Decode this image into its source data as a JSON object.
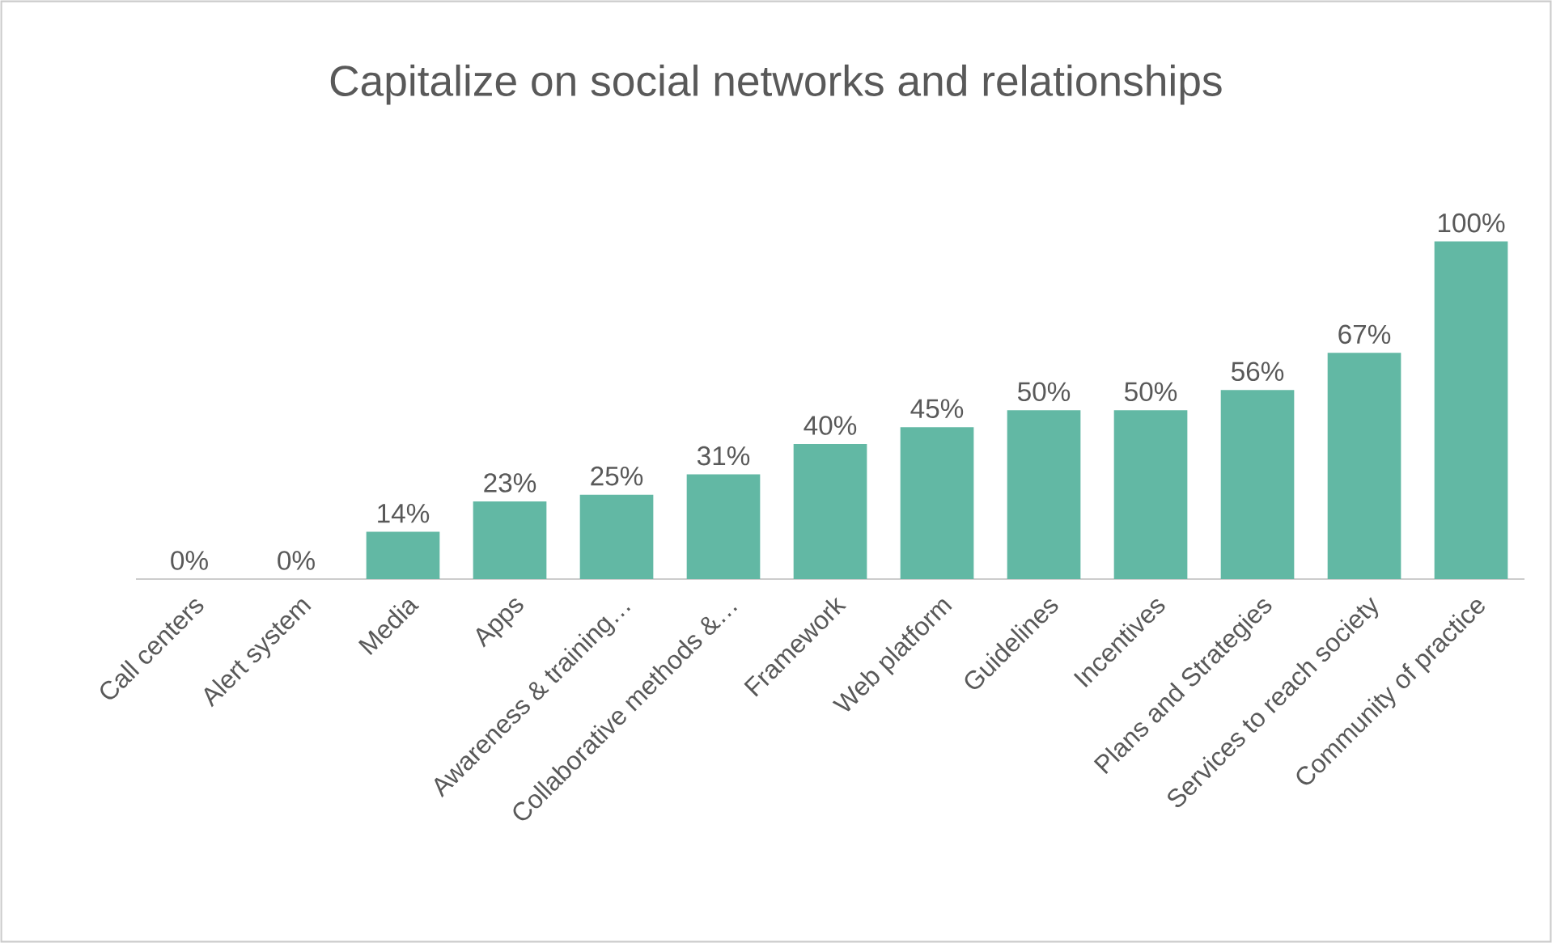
{
  "chart_data": {
    "type": "bar",
    "title": "Capitalize on social networks and relationships",
    "categories": [
      "Call centers",
      "Alert system",
      "Media",
      "Apps",
      "Awareness & training…",
      "Collaborative methods &…",
      "Framework",
      "Web platform",
      "Guidelines",
      "Incentives",
      "Plans and Strategies",
      "Services to reach society",
      "Community of practice"
    ],
    "values": [
      0,
      0,
      14,
      23,
      25,
      31,
      40,
      45,
      50,
      50,
      56,
      67,
      100
    ],
    "value_labels": [
      "0%",
      "0%",
      "14%",
      "23%",
      "25%",
      "31%",
      "40%",
      "45%",
      "50%",
      "50%",
      "56%",
      "67%",
      "100%"
    ],
    "color": "#62b8a4"
  }
}
